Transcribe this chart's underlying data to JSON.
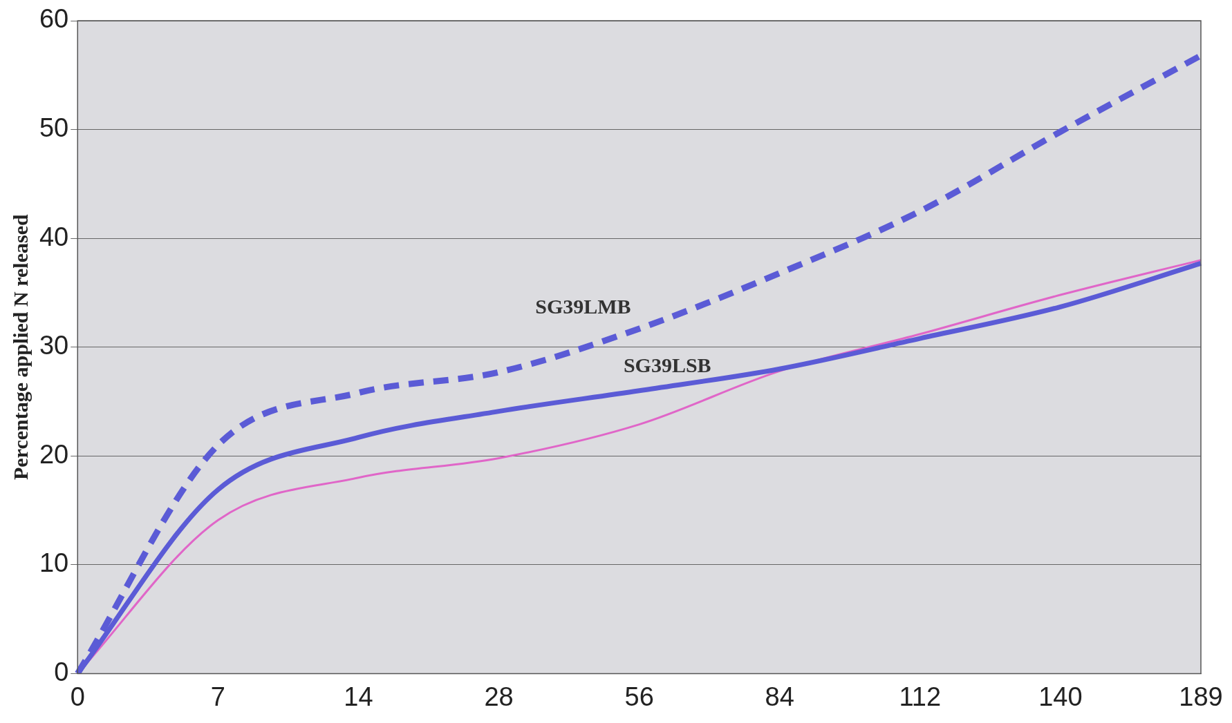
{
  "chart_data": {
    "type": "line",
    "ylabel": "Percentage applied N released",
    "categories": [
      "0",
      "7",
      "14",
      "28",
      "56",
      "84",
      "112",
      "140",
      "189"
    ],
    "series": [
      {
        "name": "SG39LMB",
        "color": "#5b5bd6",
        "line_style": "dashed",
        "values": [
          0,
          21,
          25.8,
          27.7,
          31.7,
          36.8,
          42.5,
          49.8,
          56.8
        ]
      },
      {
        "name": "SG39LSB",
        "color": "#5b5bd6",
        "line_style": "solid",
        "values": [
          0,
          16.9,
          21.7,
          24.1,
          26,
          28,
          30.8,
          33.7,
          37.7
        ]
      },
      {
        "color": "#e066c8",
        "line_style": "solid",
        "values": [
          0,
          14.1,
          18,
          19.8,
          22.9,
          27.8,
          31.2,
          34.8,
          38
        ]
      }
    ],
    "ylim": [
      0,
      60
    ],
    "yticks": [
      0,
      10,
      20,
      30,
      40,
      50,
      60
    ],
    "grid": "y",
    "legend": false,
    "marker": "none"
  }
}
